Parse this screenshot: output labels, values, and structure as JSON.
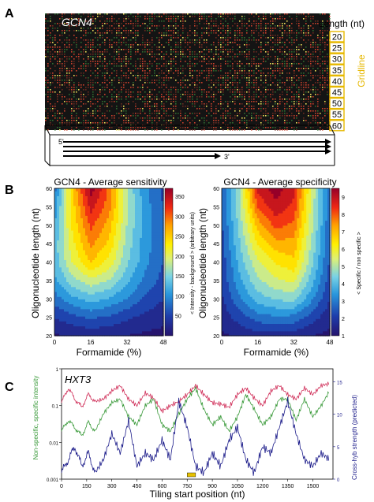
{
  "panels": {
    "a": {
      "letter": "A",
      "gene": "GCN4",
      "length_label": "Length (nt)",
      "lengths": [
        "20",
        "25",
        "30",
        "35",
        "40",
        "45",
        "50",
        "55",
        "60"
      ],
      "gridline_label": "Gridline",
      "five_prime": "5'",
      "three_prime": "3'"
    },
    "b": {
      "letter": "B"
    },
    "c": {
      "letter": "C"
    }
  },
  "colors": {
    "gold": "#e6b800",
    "array_bg": "#141414",
    "red_line": "#d0305a",
    "green_line": "#3a9a3a",
    "blue_line": "#1c1c8a"
  },
  "chart_data": [
    {
      "type": "heatmap",
      "title": "GCN4 - Average sensitivity",
      "xlabel": "Formamide (%)",
      "ylabel": "Oligonucleotide length (nt)",
      "xticks": [
        "0",
        "16",
        "32",
        "48"
      ],
      "yticks": [
        "20",
        "25",
        "30",
        "35",
        "40",
        "45",
        "50",
        "55",
        "60"
      ],
      "xlim": [
        0,
        48
      ],
      "ylim": [
        20,
        60
      ],
      "colorbar_label": "< Intensity - background > (arbitrary units)",
      "colorbar_ticks": [
        "50",
        "100",
        "150",
        "200",
        "250",
        "300",
        "350"
      ],
      "colorbar_range": [
        0,
        370
      ],
      "x": [
        0,
        8,
        16,
        24,
        32,
        40,
        48
      ],
      "y": [
        20,
        25,
        30,
        35,
        40,
        45,
        50,
        55,
        60
      ],
      "z": [
        [
          10,
          15,
          18,
          16,
          12,
          8,
          5
        ],
        [
          40,
          55,
          70,
          60,
          45,
          30,
          20
        ],
        [
          80,
          110,
          130,
          115,
          90,
          60,
          40
        ],
        [
          110,
          160,
          190,
          170,
          125,
          85,
          55
        ],
        [
          130,
          200,
          250,
          215,
          150,
          100,
          65
        ],
        [
          130,
          215,
          285,
          245,
          160,
          105,
          70
        ],
        [
          120,
          230,
          310,
          265,
          170,
          105,
          70
        ],
        [
          100,
          240,
          340,
          290,
          175,
          105,
          65
        ],
        [
          80,
          250,
          370,
          300,
          170,
          100,
          60
        ]
      ]
    },
    {
      "type": "heatmap",
      "title": "GCN4 - Average specificity",
      "xlabel": "Formamide (%)",
      "ylabel": "Oligonucleotide length (nt)",
      "xticks": [
        "0",
        "16",
        "32",
        "48"
      ],
      "yticks": [
        "20",
        "25",
        "30",
        "35",
        "40",
        "45",
        "50",
        "55",
        "60"
      ],
      "xlim": [
        0,
        48
      ],
      "ylim": [
        20,
        60
      ],
      "colorbar_label": "< Specific / non specific >",
      "colorbar_ticks": [
        "1",
        "2",
        "3",
        "4",
        "5",
        "6",
        "7",
        "8",
        "9"
      ],
      "colorbar_range": [
        1,
        9.5
      ],
      "x": [
        0,
        8,
        16,
        24,
        32,
        40,
        48
      ],
      "y": [
        20,
        25,
        30,
        35,
        40,
        45,
        50,
        55,
        60
      ],
      "z": [
        [
          1.2,
          1.4,
          1.6,
          1.6,
          1.5,
          1.3,
          1.1
        ],
        [
          1.5,
          2.2,
          2.8,
          3.0,
          2.9,
          2.2,
          1.5
        ],
        [
          1.8,
          3.0,
          4.0,
          4.4,
          4.5,
          3.2,
          1.9
        ],
        [
          2.0,
          3.6,
          4.8,
          5.4,
          5.7,
          4.0,
          2.2
        ],
        [
          2.1,
          4.0,
          5.4,
          6.2,
          6.6,
          4.5,
          2.4
        ],
        [
          2.3,
          4.3,
          6.2,
          7.1,
          7.2,
          4.8,
          2.5
        ],
        [
          2.4,
          4.6,
          7.0,
          8.2,
          7.8,
          5.1,
          2.6
        ],
        [
          2.5,
          4.8,
          8.0,
          9.0,
          8.4,
          5.3,
          2.7
        ],
        [
          2.5,
          4.9,
          8.8,
          9.5,
          8.8,
          5.4,
          2.7
        ]
      ]
    },
    {
      "type": "line",
      "title": "HXT3",
      "xlabel": "Tiling start position (nt)",
      "ylabel_left": "Non-specific, specific intensity",
      "ylabel_right": "Cross-hyb strength (predicted)",
      "y_scale": "log",
      "yticks_left": [
        "0.001",
        "0.01",
        "0.1",
        "1"
      ],
      "yticks_right": [
        "0",
        "5",
        "10",
        "15"
      ],
      "xticks": [
        "0",
        "150",
        "300",
        "450",
        "600",
        "750",
        "900",
        "1050",
        "1200",
        "1350",
        "1500"
      ],
      "xlim": [
        0,
        1620
      ],
      "ylim": [
        0.001,
        1
      ],
      "series": [
        {
          "key": "specific",
          "color": "#d0305a",
          "y_axis": "left",
          "x": [
            0,
            40,
            80,
            120,
            160,
            200,
            250,
            300,
            350,
            400,
            450,
            500,
            550,
            600,
            650,
            700,
            750,
            800,
            850,
            900,
            950,
            1000,
            1050,
            1100,
            1150,
            1200,
            1250,
            1300,
            1350,
            1400,
            1450,
            1500,
            1550,
            1600
          ],
          "values": [
            0.12,
            0.3,
            0.15,
            0.09,
            0.2,
            0.13,
            0.15,
            0.25,
            0.35,
            0.15,
            0.1,
            0.22,
            0.16,
            0.07,
            0.1,
            0.13,
            0.2,
            0.35,
            0.2,
            0.12,
            0.11,
            0.09,
            0.2,
            0.3,
            0.16,
            0.1,
            0.25,
            0.35,
            0.2,
            0.15,
            0.3,
            0.2,
            0.35,
            0.4
          ]
        },
        {
          "key": "non_specific",
          "color": "#3a9a3a",
          "y_axis": "left",
          "x": [
            0,
            40,
            80,
            120,
            160,
            200,
            250,
            300,
            350,
            400,
            450,
            500,
            550,
            600,
            650,
            700,
            750,
            800,
            850,
            900,
            950,
            1000,
            1050,
            1100,
            1150,
            1200,
            1250,
            1300,
            1350,
            1400,
            1450,
            1500,
            1550,
            1600
          ],
          "values": [
            0.02,
            0.04,
            0.025,
            0.015,
            0.035,
            0.02,
            0.06,
            0.12,
            0.15,
            0.05,
            0.03,
            0.1,
            0.15,
            0.03,
            0.02,
            0.06,
            0.15,
            0.3,
            0.08,
            0.03,
            0.05,
            0.02,
            0.05,
            0.2,
            0.08,
            0.03,
            0.05,
            0.15,
            0.15,
            0.04,
            0.15,
            0.05,
            0.1,
            0.25
          ]
        },
        {
          "key": "cross_hyb",
          "color": "#1c1c8a",
          "y_axis": "right",
          "x": [
            0,
            40,
            80,
            120,
            160,
            200,
            250,
            300,
            350,
            400,
            450,
            500,
            550,
            600,
            650,
            700,
            750,
            800,
            850,
            900,
            950,
            1000,
            1050,
            1100,
            1150,
            1200,
            1250,
            1300,
            1350,
            1400,
            1450,
            1500,
            1550,
            1600
          ],
          "values": [
            1,
            3,
            5,
            2,
            4,
            1,
            3,
            7,
            4,
            9,
            2,
            4,
            3,
            6,
            3,
            12,
            8,
            2,
            1,
            4,
            2,
            6,
            8,
            3,
            1,
            5,
            4,
            8,
            12,
            7,
            3,
            2,
            4,
            3
          ]
        }
      ],
      "marker": {
        "x_start": 750,
        "x_end": 800,
        "color": "#e6c000"
      }
    }
  ]
}
